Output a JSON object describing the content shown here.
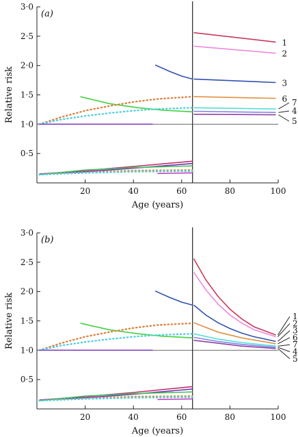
{
  "chart_data": [
    {
      "type": "line",
      "panel_label": "(a)",
      "xlabel": "Age (years)",
      "ylabel": "Relative risk",
      "xlim": [
        0,
        100
      ],
      "ylim": [
        0.0,
        3.0
      ],
      "x_ticks": [
        20,
        40,
        60,
        80,
        100
      ],
      "x_tick_labels": [
        "20",
        "40",
        "60",
        "80",
        "100"
      ],
      "y_ticks": [
        0.5,
        1.0,
        1.5,
        2.0,
        2.5,
        3.0
      ],
      "y_tick_labels": [
        "0·5",
        "1·0",
        "1·5",
        "2·0",
        "2·5",
        "3·0"
      ],
      "reference_line_y": 1.0,
      "vertical_line_x": 64.5,
      "series": [
        {
          "label": "1",
          "color": "#c8385a",
          "style": "solid",
          "points": [
            [
              65,
              2.56
            ],
            [
              99,
              2.4
            ]
          ]
        },
        {
          "label": "2",
          "color": "#ee88dd",
          "style": "solid",
          "points": [
            [
              65,
              2.33
            ],
            [
              99,
              2.21
            ]
          ]
        },
        {
          "label": "3",
          "color": "#3050b0",
          "style": "solid",
          "points": [
            [
              65,
              1.77
            ],
            [
              99,
              1.71
            ]
          ]
        },
        {
          "label": "6",
          "color": "#e09040",
          "style": "solid",
          "points": [
            [
              65,
              1.47
            ],
            [
              99,
              1.44
            ]
          ]
        },
        {
          "label": "7",
          "color": "#50e0d0",
          "style": "solid",
          "points": [
            [
              65,
              1.28
            ],
            [
              99,
              1.26
            ]
          ]
        },
        {
          "label": "4",
          "color": "#8080f0",
          "style": "solid",
          "points": [
            [
              65,
              1.22
            ],
            [
              99,
              1.2
            ]
          ]
        },
        {
          "label": "5",
          "color": "#9040a0",
          "style": "solid",
          "points": [
            [
              65,
              1.17
            ],
            [
              99,
              1.16
            ]
          ]
        },
        {
          "label": "",
          "color": "#3050b0",
          "style": "solid",
          "points": [
            [
              49,
              2.01
            ],
            [
              55,
              1.9
            ],
            [
              60,
              1.82
            ],
            [
              64.5,
              1.77
            ]
          ]
        },
        {
          "label": "",
          "color": "#40d040",
          "style": "solid",
          "points": [
            [
              18,
              1.47
            ],
            [
              30,
              1.35
            ],
            [
              42,
              1.28
            ],
            [
              52,
              1.24
            ],
            [
              64.5,
              1.21
            ]
          ]
        },
        {
          "label": "",
          "color": "#e08040",
          "style": "dotted",
          "points": [
            [
              1,
              1.0
            ],
            [
              10,
              1.12
            ],
            [
              20,
              1.23
            ],
            [
              30,
              1.31
            ],
            [
              40,
              1.38
            ],
            [
              50,
              1.43
            ],
            [
              64.5,
              1.47
            ]
          ]
        },
        {
          "label": "",
          "color": "#50d0e0",
          "style": "dotted",
          "points": [
            [
              1,
              1.0
            ],
            [
              10,
              1.08
            ],
            [
              20,
              1.14
            ],
            [
              30,
              1.19
            ],
            [
              40,
              1.23
            ],
            [
              50,
              1.26
            ],
            [
              64.5,
              1.28
            ]
          ]
        },
        {
          "label": "",
          "color": "#8040c0",
          "style": "solid",
          "points": [
            [
              1,
              1.0
            ],
            [
              48,
              1.0
            ]
          ]
        },
        {
          "label": "",
          "color": "#c0306a",
          "style": "solid",
          "points": [
            [
              1,
              0.15
            ],
            [
              20,
              0.21
            ],
            [
              40,
              0.28
            ],
            [
              64.5,
              0.37
            ]
          ]
        },
        {
          "label": "",
          "color": "#7030b0",
          "style": "solid",
          "points": [
            [
              1,
              0.15
            ],
            [
              20,
              0.19
            ],
            [
              40,
              0.25
            ],
            [
              64.5,
              0.33
            ]
          ]
        },
        {
          "label": "",
          "color": "#40c060",
          "style": "solid",
          "points": [
            [
              1,
              0.14
            ],
            [
              20,
              0.22
            ],
            [
              40,
              0.26
            ],
            [
              64.5,
              0.29
            ]
          ]
        },
        {
          "label": "",
          "color": "#e09040",
          "style": "dotted",
          "points": [
            [
              1,
              0.14
            ],
            [
              20,
              0.18
            ],
            [
              40,
              0.21
            ],
            [
              64.5,
              0.22
            ]
          ]
        },
        {
          "label": "",
          "color": "#50d0e0",
          "style": "dotted",
          "points": [
            [
              1,
              0.14
            ],
            [
              20,
              0.17
            ],
            [
              40,
              0.19
            ],
            [
              64.5,
              0.2
            ]
          ]
        },
        {
          "label": "",
          "color": "#c040c0",
          "style": "solid",
          "points": [
            [
              50,
              0.16
            ],
            [
              64.5,
              0.17
            ]
          ]
        }
      ]
    },
    {
      "type": "line",
      "panel_label": "(b)",
      "xlabel": "Age (years)",
      "ylabel": "Relative risk",
      "xlim": [
        0,
        100
      ],
      "ylim": [
        0.0,
        3.0
      ],
      "x_ticks": [
        20,
        40,
        60,
        80,
        100
      ],
      "x_tick_labels": [
        "20",
        "40",
        "60",
        "80",
        "100"
      ],
      "y_ticks": [
        0.5,
        1.0,
        1.5,
        2.0,
        2.5,
        3.0
      ],
      "y_tick_labels": [
        "0·5",
        "1·0",
        "1·5",
        "2·0",
        "2·5",
        "3·0"
      ],
      "reference_line_y": 1.0,
      "vertical_line_x": 64.5,
      "series": [
        {
          "label": "1",
          "color": "#c8385a",
          "style": "solid",
          "points": [
            [
              65,
              2.56
            ],
            [
              70,
              2.2
            ],
            [
              75,
              1.92
            ],
            [
              80,
              1.7
            ],
            [
              85,
              1.53
            ],
            [
              90,
              1.4
            ],
            [
              99,
              1.26
            ]
          ]
        },
        {
          "label": "2",
          "color": "#ee88dd",
          "style": "solid",
          "points": [
            [
              65,
              2.33
            ],
            [
              70,
              2.03
            ],
            [
              75,
              1.79
            ],
            [
              80,
              1.6
            ],
            [
              85,
              1.46
            ],
            [
              90,
              1.35
            ],
            [
              99,
              1.23
            ]
          ]
        },
        {
          "label": "3",
          "color": "#3050b0",
          "style": "solid",
          "points": [
            [
              65,
              1.77
            ],
            [
              70,
              1.6
            ],
            [
              75,
              1.47
            ],
            [
              80,
              1.37
            ],
            [
              85,
              1.29
            ],
            [
              90,
              1.23
            ],
            [
              99,
              1.15
            ]
          ]
        },
        {
          "label": "6",
          "color": "#e09040",
          "style": "solid",
          "points": [
            [
              65,
              1.47
            ],
            [
              75,
              1.31
            ],
            [
              85,
              1.21
            ],
            [
              99,
              1.11
            ]
          ]
        },
        {
          "label": "7",
          "color": "#50e0d0",
          "style": "solid",
          "points": [
            [
              65,
              1.28
            ],
            [
              75,
              1.19
            ],
            [
              85,
              1.13
            ],
            [
              99,
              1.07
            ]
          ]
        },
        {
          "label": "4",
          "color": "#8080f0",
          "style": "solid",
          "points": [
            [
              65,
              1.22
            ],
            [
              75,
              1.15
            ],
            [
              85,
              1.1
            ],
            [
              99,
              1.05
            ]
          ]
        },
        {
          "label": "5",
          "color": "#9040a0",
          "style": "solid",
          "points": [
            [
              65,
              1.17
            ],
            [
              75,
              1.12
            ],
            [
              85,
              1.07
            ],
            [
              99,
              1.03
            ]
          ]
        },
        {
          "label": "",
          "color": "#3050b0",
          "style": "solid",
          "points": [
            [
              49,
              2.01
            ],
            [
              55,
              1.9
            ],
            [
              60,
              1.82
            ],
            [
              64.5,
              1.77
            ]
          ]
        },
        {
          "label": "",
          "color": "#40d040",
          "style": "solid",
          "points": [
            [
              18,
              1.46
            ],
            [
              30,
              1.35
            ],
            [
              42,
              1.28
            ],
            [
              52,
              1.24
            ],
            [
              64.5,
              1.21
            ]
          ]
        },
        {
          "label": "",
          "color": "#e08040",
          "style": "dotted",
          "points": [
            [
              1,
              1.0
            ],
            [
              10,
              1.12
            ],
            [
              20,
              1.23
            ],
            [
              30,
              1.31
            ],
            [
              40,
              1.38
            ],
            [
              50,
              1.43
            ],
            [
              64.5,
              1.46
            ]
          ]
        },
        {
          "label": "",
          "color": "#50d0e0",
          "style": "dotted",
          "points": [
            [
              1,
              1.0
            ],
            [
              10,
              1.08
            ],
            [
              20,
              1.14
            ],
            [
              30,
              1.19
            ],
            [
              40,
              1.23
            ],
            [
              50,
              1.26
            ],
            [
              64.5,
              1.28
            ]
          ]
        },
        {
          "label": "",
          "color": "#8040c0",
          "style": "solid",
          "points": [
            [
              1,
              1.0
            ],
            [
              48,
              1.0
            ]
          ]
        },
        {
          "label": "",
          "color": "#c0306a",
          "style": "solid",
          "points": [
            [
              1,
              0.15
            ],
            [
              20,
              0.21
            ],
            [
              40,
              0.28
            ],
            [
              64.5,
              0.38
            ]
          ]
        },
        {
          "label": "",
          "color": "#7030b0",
          "style": "solid",
          "points": [
            [
              1,
              0.15
            ],
            [
              20,
              0.19
            ],
            [
              40,
              0.25
            ],
            [
              64.5,
              0.34
            ]
          ]
        },
        {
          "label": "",
          "color": "#40c060",
          "style": "solid",
          "points": [
            [
              1,
              0.14
            ],
            [
              20,
              0.22
            ],
            [
              40,
              0.26
            ],
            [
              64.5,
              0.29
            ]
          ]
        },
        {
          "label": "",
          "color": "#e09040",
          "style": "dotted",
          "points": [
            [
              1,
              0.14
            ],
            [
              20,
              0.18
            ],
            [
              40,
              0.21
            ],
            [
              64.5,
              0.22
            ]
          ]
        },
        {
          "label": "",
          "color": "#50d0e0",
          "style": "dotted",
          "points": [
            [
              1,
              0.14
            ],
            [
              20,
              0.17
            ],
            [
              40,
              0.19
            ],
            [
              64.5,
              0.2
            ]
          ]
        },
        {
          "label": "",
          "color": "#c040c0",
          "style": "solid",
          "points": [
            [
              50,
              0.16
            ],
            [
              64.5,
              0.17
            ]
          ]
        }
      ]
    }
  ]
}
